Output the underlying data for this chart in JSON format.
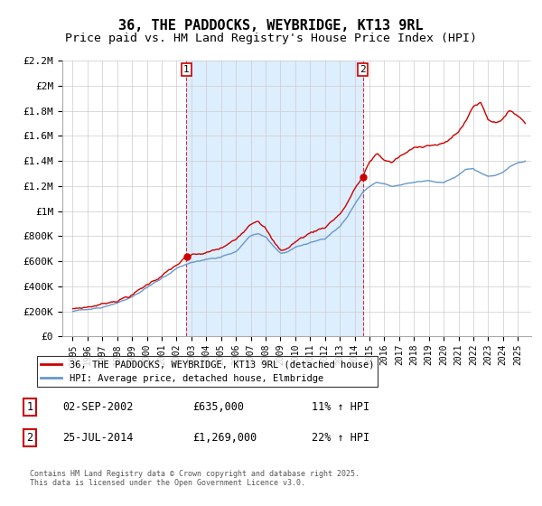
{
  "title": "36, THE PADDOCKS, WEYBRIDGE, KT13 9RL",
  "subtitle": "Price paid vs. HM Land Registry's House Price Index (HPI)",
  "ylim": [
    0,
    2200000
  ],
  "yticks": [
    0,
    200000,
    400000,
    600000,
    800000,
    1000000,
    1200000,
    1400000,
    1600000,
    1800000,
    2000000,
    2200000
  ],
  "ytick_labels": [
    "£0",
    "£200K",
    "£400K",
    "£600K",
    "£800K",
    "£1M",
    "£1.2M",
    "£1.4M",
    "£1.6M",
    "£1.8M",
    "£2M",
    "£2.2M"
  ],
  "hpi_color": "#6699cc",
  "price_color": "#cc0000",
  "shade_color": "#ddeeff",
  "purchase1_date": 2002.67,
  "purchase1_price": 635000,
  "purchase1_label": "1",
  "purchase2_date": 2014.56,
  "purchase2_price": 1269000,
  "purchase2_label": "2",
  "legend_label1": "36, THE PADDOCKS, WEYBRIDGE, KT13 9RL (detached house)",
  "legend_label2": "HPI: Average price, detached house, Elmbridge",
  "copyright": "Contains HM Land Registry data © Crown copyright and database right 2025.\nThis data is licensed under the Open Government Licence v3.0.",
  "background_color": "#ffffff",
  "plot_bg_color": "#ffffff",
  "grid_color": "#cccccc",
  "title_fontsize": 11,
  "subtitle_fontsize": 9.5
}
